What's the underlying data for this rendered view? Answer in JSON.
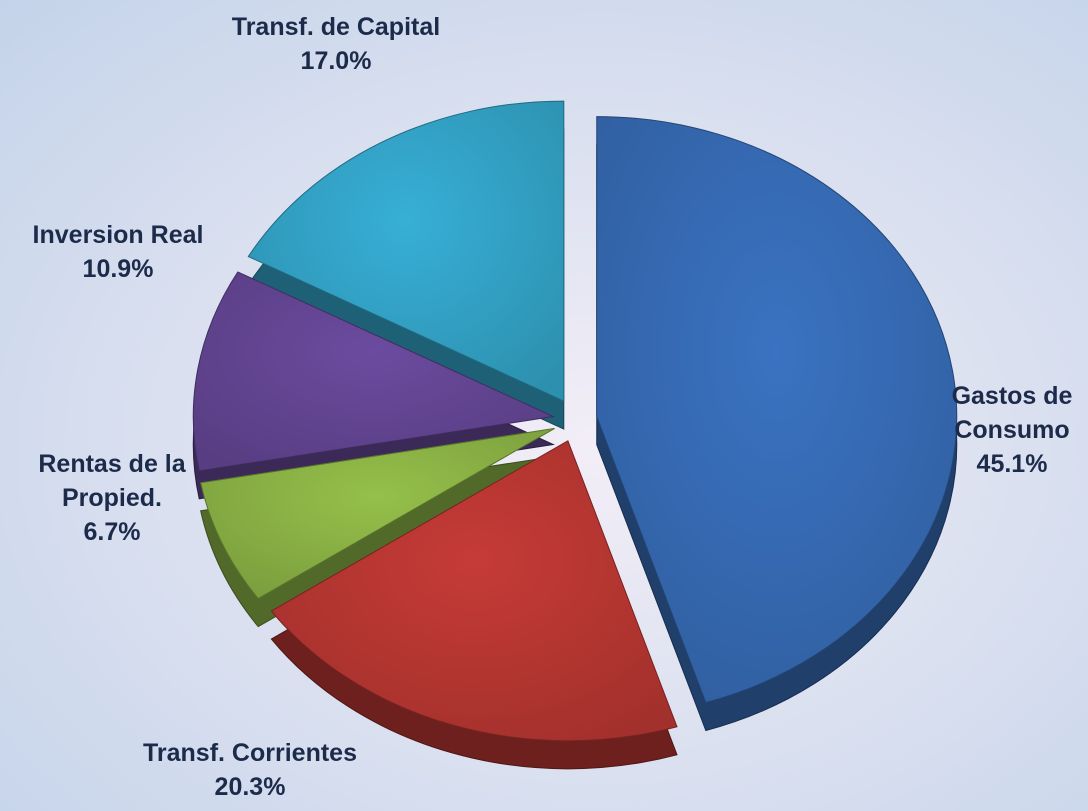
{
  "chart_data": {
    "type": "pie",
    "categories": [
      "Gastos de Consumo",
      "Transf. Corrientes",
      "Rentas de la Propied.",
      "Inversion Real",
      "Transf. de Capital"
    ],
    "values": [
      45.1,
      20.3,
      6.7,
      10.9,
      17.0
    ],
    "value_labels": [
      "45.1%",
      "20.3%",
      "6.7%",
      "10.9%",
      "17.0%"
    ],
    "colors": [
      "#3a73c2",
      "#c63b36",
      "#95c04a",
      "#6b4b9f",
      "#37afd6"
    ]
  }
}
